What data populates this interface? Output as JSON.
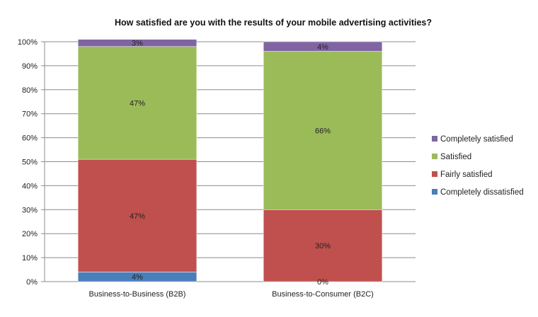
{
  "chart_data": {
    "type": "bar",
    "stacked": true,
    "title": "How satisfied are you with the results of your mobile advertising activities?",
    "categories": [
      "Business-to-Business (B2B)",
      "Business-to-Consumer (B2C)"
    ],
    "series": [
      {
        "name": "Completely dissatisfied",
        "color": "#4a7ebb",
        "values": [
          4,
          0
        ],
        "labels": [
          "4%",
          "0%"
        ]
      },
      {
        "name": "Fairly satisfied",
        "color": "#c0504d",
        "values": [
          47,
          30
        ],
        "labels": [
          "47%",
          "30%"
        ]
      },
      {
        "name": "Satisfied",
        "color": "#9bbb59",
        "values": [
          47,
          66
        ],
        "labels": [
          "47%",
          "66%"
        ]
      },
      {
        "name": "Completely satisfied",
        "color": "#8064a2",
        "values": [
          3,
          4
        ],
        "labels": [
          "3%",
          "4%"
        ]
      }
    ],
    "yticks": [
      "0%",
      "10%",
      "20%",
      "30%",
      "40%",
      "50%",
      "60%",
      "70%",
      "80%",
      "90%",
      "100%"
    ],
    "ylim": [
      0,
      100
    ],
    "grid": true,
    "legend": "right"
  }
}
